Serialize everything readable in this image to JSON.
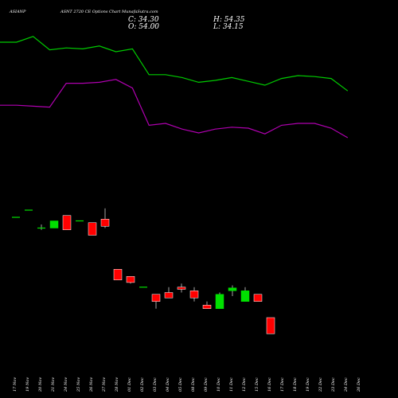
{
  "header": {
    "symbol": "ASIANP",
    "title": "ASNT 2720 CE Options Chart MunafaSutra.com"
  },
  "ohlc": {
    "close": "C: 34.30",
    "high": "H: 54.35",
    "open": "O: 54.00",
    "low": "L: 34.15"
  },
  "colors": {
    "background": "#000000",
    "up": "#00e000",
    "down": "#ff0000",
    "green_line": "#00cc00",
    "magenta_line": "#b000b0",
    "wick": "#cccccc"
  },
  "chart_data": {
    "type": "candlestick",
    "x": [
      "17 Nov",
      "19 Nov",
      "20 Nov",
      "21 Nov",
      "24 Nov",
      "25 Nov",
      "26 Nov",
      "27 Nov",
      "28 Nov",
      "01 Dec",
      "02 Dec",
      "03 Dec",
      "04 Dec",
      "05 Dec",
      "08 Dec",
      "09 Dec",
      "10 Dec",
      "11 Dec",
      "12 Dec",
      "15 Dec",
      "16 Dec",
      "17 Dec",
      "18 Dec",
      "19 Dec",
      "22 Dec",
      "23 Dec",
      "24 Dec",
      "26 Dec"
    ],
    "candles": [
      {
        "open": 116,
        "high": 116,
        "low": 116,
        "close": 116
      },
      {
        "open": 118,
        "high": 118,
        "low": 118,
        "close": 118
      },
      {
        "open": 113,
        "high": 114,
        "low": 112.5,
        "close": 113
      },
      {
        "open": 113,
        "high": 115,
        "low": 113,
        "close": 115
      },
      {
        "open": 116.5,
        "high": 116.5,
        "low": 112.5,
        "close": 112.5
      },
      {
        "open": 115,
        "high": 115,
        "low": 115,
        "close": 115
      },
      {
        "open": 114.5,
        "high": 114.5,
        "low": 111,
        "close": 111
      },
      {
        "open": 115.5,
        "high": 118.5,
        "low": 113,
        "close": 113.5
      },
      {
        "open": 101.5,
        "high": 101.5,
        "low": 98.5,
        "close": 98.5
      },
      {
        "open": 99.5,
        "high": 99.5,
        "low": 97.5,
        "close": 97.8
      },
      {
        "open": 96.5,
        "high": 96.5,
        "low": 96.5,
        "close": 96.5
      },
      {
        "open": 94.5,
        "high": 94.5,
        "low": 90.5,
        "close": 92.5
      },
      {
        "open": 95,
        "high": 96.5,
        "low": 93.5,
        "close": 93.5
      },
      {
        "open": 96.5,
        "high": 97.5,
        "low": 95,
        "close": 95.9
      },
      {
        "open": 95.5,
        "high": 96.5,
        "low": 92.5,
        "close": 93.5
      },
      {
        "open": 91.5,
        "high": 92.5,
        "low": 90.5,
        "close": 90.5
      },
      {
        "open": 90.5,
        "high": 95,
        "low": 90.5,
        "close": 94.5
      },
      {
        "open": 95.5,
        "high": 97,
        "low": 94,
        "close": 96.3
      },
      {
        "open": 92.5,
        "high": 96.5,
        "low": 92.5,
        "close": 95.5
      },
      {
        "open": 94.5,
        "high": 94.5,
        "low": 92.5,
        "close": 92.5
      },
      {
        "open": 88,
        "high": 88,
        "low": 83.5,
        "close": 83.5
      }
    ],
    "candle_x_index": [
      0,
      1,
      2,
      3,
      4,
      5,
      6,
      7,
      8,
      9,
      10,
      11,
      12,
      13,
      14,
      15,
      16,
      17,
      18,
      19,
      20
    ],
    "price_range": [
      80,
      120
    ],
    "overlay_range": [
      0,
      100
    ],
    "lines": [
      {
        "color": "#00cc00",
        "values": [
          92.5,
          92.5,
          95.5,
          88.5,
          89.5,
          89,
          90.5,
          87.5,
          89,
          75.5,
          75.5,
          74,
          71.5,
          72.5,
          74,
          72,
          70,
          73.5,
          75,
          74.5,
          73.5,
          67
        ]
      },
      {
        "color": "#b000b0",
        "values": [
          59.5,
          59.5,
          59,
          58.5,
          71,
          71,
          71.5,
          73,
          68.5,
          49,
          50,
          47,
          45,
          47,
          48,
          47.5,
          44.5,
          49,
          50,
          50,
          47.5,
          42.5
        ]
      }
    ]
  }
}
